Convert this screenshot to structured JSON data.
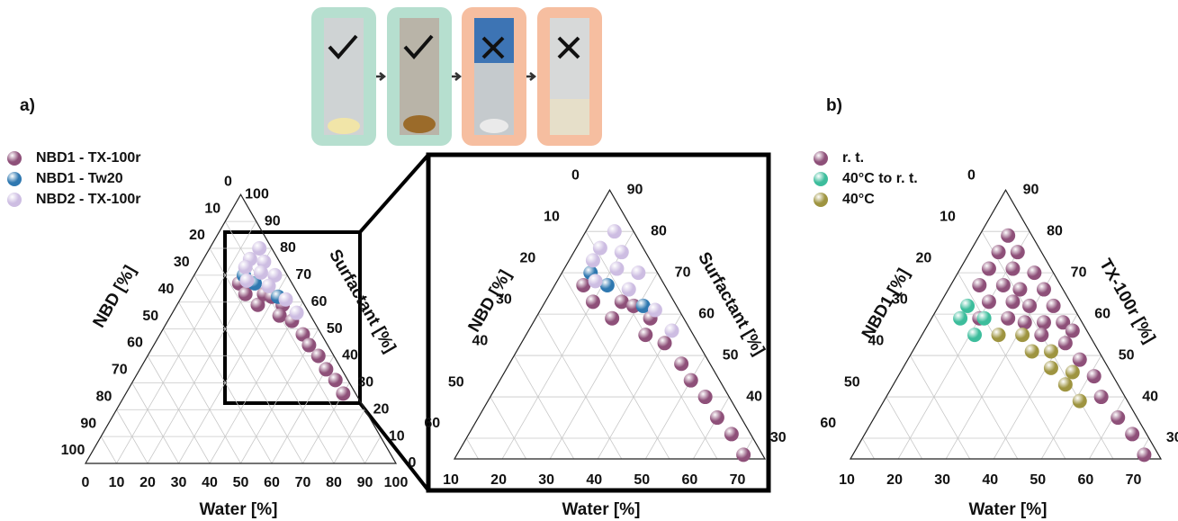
{
  "chart_data": [
    {
      "type": "ternary",
      "label": "a)",
      "grid": true,
      "legend": "upper left",
      "axes": {
        "bottom": {
          "title": "Water [%]",
          "lim": [
            0,
            100
          ],
          "ticks": [
            0,
            10,
            20,
            30,
            40,
            50,
            60,
            70,
            80,
            90,
            100
          ]
        },
        "left": {
          "title": "NBD [%]",
          "lim": [
            0,
            100
          ],
          "ticks": [
            0,
            10,
            20,
            30,
            40,
            50,
            60,
            70,
            80,
            90,
            100
          ]
        },
        "right": {
          "title": "Surfactant [%]",
          "lim": [
            0,
            100
          ],
          "ticks": [
            0,
            10,
            20,
            30,
            40,
            50,
            60,
            70,
            80,
            90,
            100
          ]
        }
      },
      "series": [
        {
          "name": "NBD1 - TX-100r",
          "color": "#8e5079",
          "water": [
            16,
            20,
            26,
            26,
            29,
            34,
            35,
            40,
            46,
            50,
            55,
            60,
            65,
            70
          ],
          "surfactant": [
            67,
            63,
            59,
            63,
            62,
            59,
            55,
            53,
            48,
            44,
            40,
            35,
            31,
            26
          ]
        },
        {
          "name": "NBD1 - Tw20",
          "color": "#2f78b0",
          "water": [
            16,
            21,
            31
          ],
          "surfactant": [
            70,
            67,
            62
          ]
        },
        {
          "name": "NBD2 - TX-100r",
          "color": "#cdbde2",
          "water": [
            16,
            15,
            20,
            21,
            26,
            26,
            34,
            40,
            15,
            18
          ],
          "surfactant": [
            80,
            76,
            75,
            71,
            70,
            66,
            61,
            56,
            73,
            68
          ]
        }
      ]
    },
    {
      "type": "ternary",
      "grid": true,
      "axes": {
        "bottom": {
          "title": "Water [%]",
          "lim": [
            10,
            75
          ],
          "ticks": [
            10,
            20,
            30,
            40,
            50,
            60,
            70
          ]
        },
        "left": {
          "title": "NBD [%]",
          "lim": [
            0,
            65
          ],
          "ticks": [
            0,
            10,
            20,
            30,
            40,
            50,
            60
          ]
        },
        "right": {
          "title": "Surfactant [%]",
          "lim": [
            25,
            90
          ],
          "ticks": [
            30,
            40,
            50,
            60,
            70,
            80,
            90
          ]
        }
      },
      "series": [
        {
          "color": "#8e5079",
          "water": [
            16,
            20,
            26,
            26,
            29,
            34,
            35,
            40,
            46,
            50,
            55,
            60,
            65,
            70
          ],
          "surfactant": [
            67,
            63,
            59,
            63,
            62,
            59,
            55,
            53,
            48,
            44,
            40,
            35,
            31,
            26
          ]
        },
        {
          "color": "#2f78b0",
          "water": [
            16,
            21,
            31
          ],
          "surfactant": [
            70,
            67,
            62
          ]
        },
        {
          "color": "#cdbde2",
          "water": [
            16,
            15,
            20,
            21,
            26,
            26,
            34,
            40,
            15,
            18
          ],
          "surfactant": [
            80,
            76,
            75,
            71,
            70,
            66,
            61,
            56,
            73,
            68
          ]
        }
      ]
    },
    {
      "type": "ternary",
      "label": "b)",
      "grid": true,
      "legend": "upper left",
      "axes": {
        "bottom": {
          "title": "Water [%]",
          "lim": [
            10,
            75
          ],
          "ticks": [
            10,
            20,
            30,
            40,
            50,
            60,
            70
          ]
        },
        "left": {
          "title": "NBD1 [%]",
          "lim": [
            0,
            65
          ],
          "ticks": [
            0,
            10,
            20,
            30,
            40,
            50,
            60
          ]
        },
        "right": {
          "title": "TX-100r [%]",
          "lim": [
            25,
            90
          ],
          "ticks": [
            30,
            40,
            50,
            60,
            70,
            80,
            90
          ]
        }
      },
      "series": [
        {
          "name": "r. t.",
          "color": "#8e5079",
          "water": [
            16,
            16,
            20,
            16,
            21,
            26,
            16,
            21,
            25,
            30,
            20,
            25,
            29,
            34,
            20,
            26,
            30,
            34,
            38,
            41,
            35,
            41,
            46,
            51,
            55,
            61,
            66,
            71
          ],
          "surfactant": [
            79,
            75,
            75,
            71,
            71,
            70,
            67,
            67,
            66,
            66,
            63,
            63,
            62,
            62,
            59,
            59,
            58,
            58,
            58,
            56,
            55,
            53,
            49,
            45,
            40,
            35,
            31,
            26
          ]
        },
        {
          "name": "40°C to r. t.",
          "color": "#3dbd9c",
          "water": [
            16,
            16,
            21,
            21
          ],
          "surfactant": [
            62,
            59,
            59,
            55
          ]
        },
        {
          "name": "40°C",
          "color": "#9e9440",
          "water": [
            26,
            31,
            35,
            39,
            41,
            46,
            46,
            51
          ],
          "surfactant": [
            55,
            55,
            51,
            51,
            47,
            46,
            43,
            39
          ]
        }
      ]
    }
  ]
}
